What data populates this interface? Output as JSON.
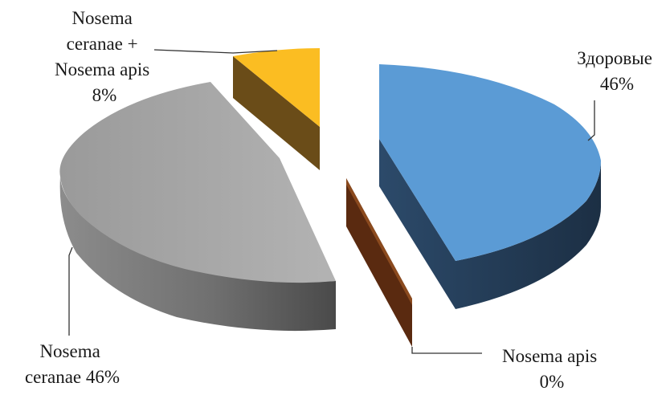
{
  "chart_data": {
    "type": "pie",
    "style": "3d-exploded",
    "legend": "none",
    "slices": [
      {
        "name_lines": [
          "Здоровые"
        ],
        "percent_label": "46%",
        "value": 46,
        "color": "#5b9bd5",
        "side_color": "#233a52"
      },
      {
        "name_lines": [
          "Nosema apis"
        ],
        "percent_label": "0%",
        "value": 0,
        "color": "#8b4a1e",
        "side_color": "#5a2a10"
      },
      {
        "name_lines": [
          "Nosema",
          "ceranae 46%"
        ],
        "percent_label": "",
        "value": 46,
        "color": "#a5a5a5",
        "side_color": "#6e6e6e"
      },
      {
        "name_lines": [
          "Nosema",
          "ceranae +",
          "Nosema apis"
        ],
        "percent_label": "8%",
        "value": 8,
        "color": "#fbbd22",
        "side_color": "#6a4c18"
      }
    ]
  }
}
